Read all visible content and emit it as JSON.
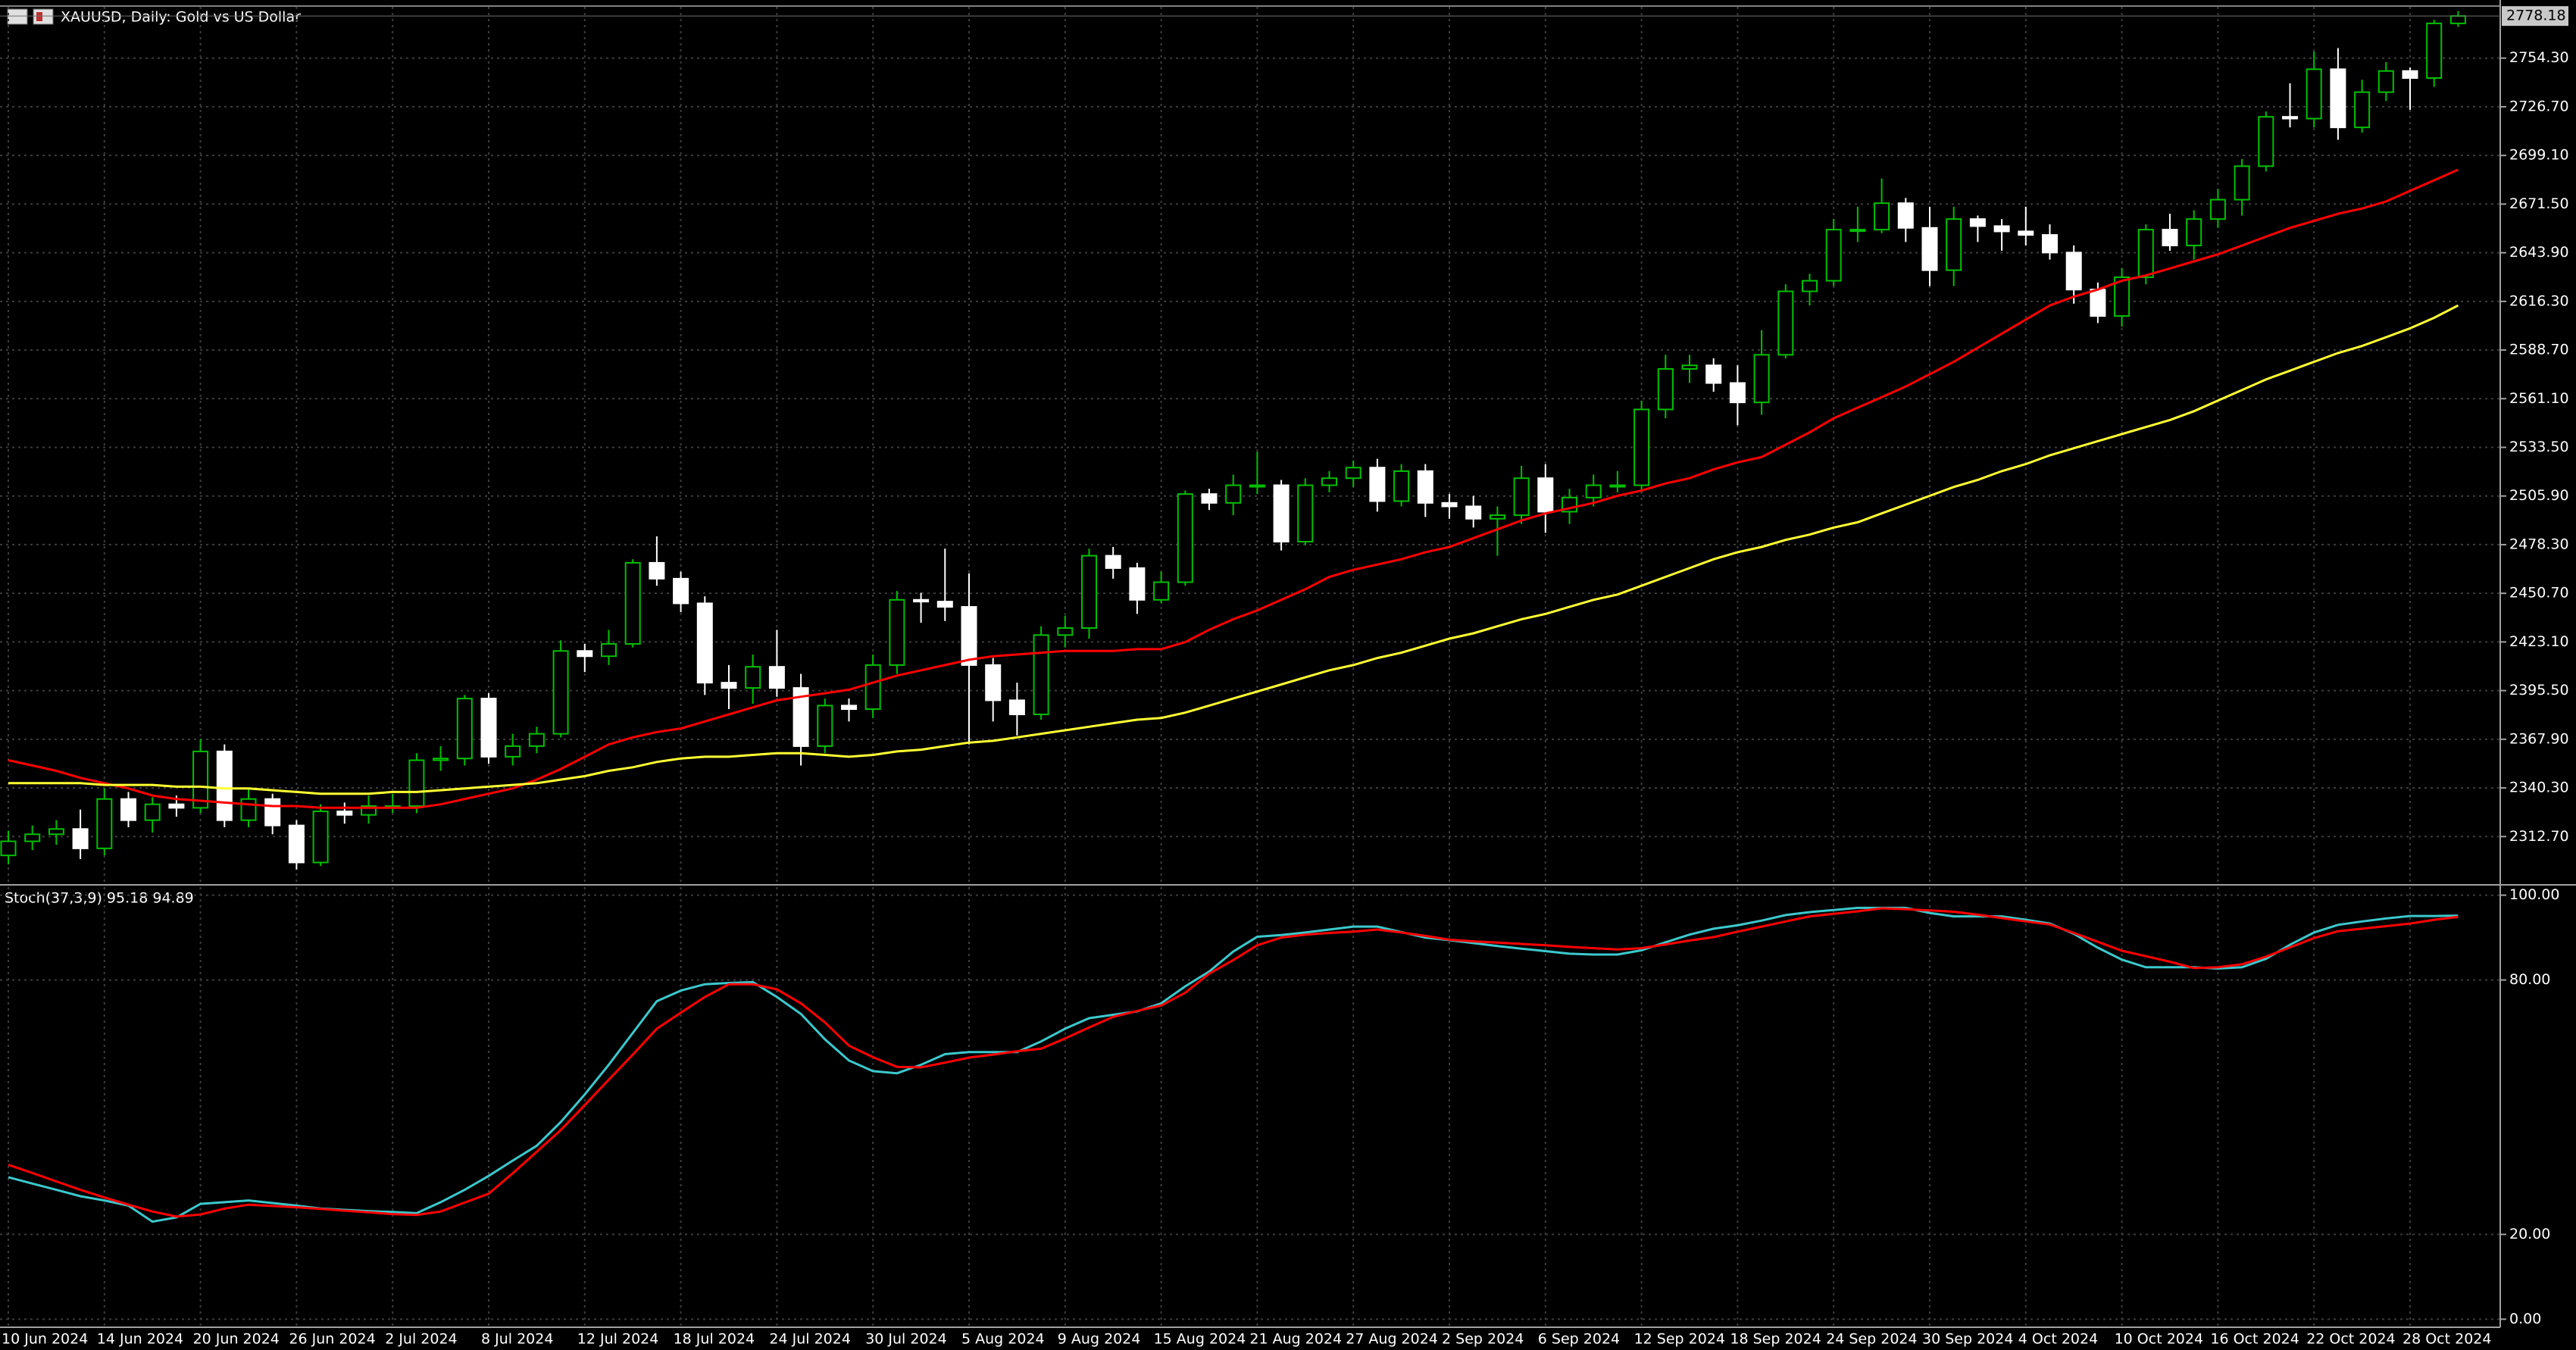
{
  "chart_data": [
    {
      "type": "candlestick",
      "title": "XAUUSD, Daily:  Gold vs US Dollar",
      "categories": [
        "10 Jun 2024",
        null,
        null,
        null,
        "14 Jun 2024",
        null,
        null,
        null,
        "20 Jun 2024",
        null,
        null,
        null,
        "26 Jun 2024",
        null,
        null,
        null,
        "2 Jul 2024",
        null,
        null,
        null,
        "8 Jul 2024",
        null,
        null,
        null,
        "12 Jul 2024",
        null,
        null,
        null,
        "18 Jul 2024",
        null,
        null,
        null,
        "24 Jul 2024",
        null,
        null,
        null,
        "30 Jul 2024",
        null,
        null,
        null,
        "5 Aug 2024",
        null,
        null,
        null,
        "9 Aug 2024",
        null,
        null,
        null,
        "15 Aug 2024",
        null,
        null,
        null,
        "21 Aug 2024",
        null,
        null,
        null,
        "27 Aug 2024",
        null,
        null,
        null,
        "2 Sep 2024",
        null,
        null,
        null,
        "6 Sep 2024",
        null,
        null,
        null,
        "12 Sep 2024",
        null,
        null,
        null,
        "18 Sep 2024",
        null,
        null,
        null,
        "24 Sep 2024",
        null,
        null,
        null,
        "30 Sep 2024",
        null,
        null,
        null,
        "4 Oct 2024",
        null,
        null,
        null,
        "10 Oct 2024",
        null,
        null,
        null,
        "16 Oct 2024",
        null,
        null,
        null,
        "22 Oct 2024",
        null,
        null,
        null,
        "28 Oct 2024",
        null,
        null
      ],
      "open": [
        2302,
        2310,
        2314,
        2317,
        2306,
        2334,
        2322,
        2331,
        2329,
        2361,
        2322,
        2334,
        2319,
        2298,
        2327,
        2325,
        2330,
        2330,
        2356,
        2357,
        2391,
        2358,
        2364,
        2371,
        2418,
        2415,
        2422,
        2468,
        2459,
        2445,
        2400,
        2397,
        2409,
        2397,
        2364,
        2387,
        2385,
        2410,
        2447,
        2446,
        2443,
        2410,
        2390,
        2382,
        2427,
        2431,
        2472,
        2465,
        2447,
        2457,
        2507,
        2502,
        2512,
        2512,
        2480,
        2512,
        2516,
        2522,
        2503,
        2520,
        2502,
        2500,
        2493,
        2495,
        2516,
        2497,
        2505,
        2512,
        2512,
        2555,
        2578,
        2580,
        2570,
        2559,
        2586,
        2622,
        2628,
        2657,
        2657,
        2672,
        2658,
        2634,
        2663,
        2659,
        2656,
        2654,
        2644,
        2623,
        2608,
        2630,
        2657,
        2648,
        2663,
        2674,
        2693,
        2721,
        2720,
        2748,
        2715,
        2735,
        2747,
        2743,
        2774
      ],
      "high": [
        2316,
        2319,
        2322,
        2328,
        2340,
        2338,
        2335,
        2336,
        2368,
        2365,
        2340,
        2337,
        2322,
        2331,
        2332,
        2336,
        2337,
        2360,
        2364,
        2393,
        2394,
        2371,
        2375,
        2424,
        2422,
        2430,
        2470,
        2483,
        2463,
        2449,
        2410,
        2416,
        2430,
        2405,
        2391,
        2391,
        2416,
        2452,
        2451,
        2476,
        2462,
        2414,
        2400,
        2432,
        2438,
        2476,
        2477,
        2468,
        2463,
        2509,
        2510,
        2518,
        2531,
        2515,
        2516,
        2520,
        2526,
        2527,
        2524,
        2524,
        2507,
        2506,
        2500,
        2523,
        2524,
        2510,
        2518,
        2520,
        2560,
        2586,
        2586,
        2584,
        2580,
        2600,
        2626,
        2632,
        2663,
        2670,
        2686,
        2675,
        2670,
        2670,
        2665,
        2663,
        2670,
        2660,
        2648,
        2627,
        2635,
        2660,
        2666,
        2668,
        2680,
        2697,
        2724,
        2740,
        2758,
        2760,
        2742,
        2752,
        2749,
        2776,
        2781
      ],
      "low": [
        2297,
        2305,
        2308,
        2300,
        2302,
        2318,
        2315,
        2324,
        2326,
        2318,
        2318,
        2314,
        2294,
        2296,
        2320,
        2320,
        2326,
        2326,
        2350,
        2353,
        2354,
        2353,
        2360,
        2369,
        2406,
        2410,
        2420,
        2455,
        2440,
        2393,
        2385,
        2388,
        2392,
        2353,
        2360,
        2378,
        2380,
        2405,
        2434,
        2435,
        2365,
        2378,
        2370,
        2379,
        2420,
        2425,
        2459,
        2439,
        2445,
        2455,
        2498,
        2495,
        2507,
        2475,
        2478,
        2508,
        2511,
        2497,
        2500,
        2494,
        2493,
        2488,
        2472,
        2490,
        2485,
        2490,
        2500,
        2508,
        2508,
        2550,
        2570,
        2565,
        2546,
        2552,
        2584,
        2614,
        2625,
        2650,
        2655,
        2650,
        2625,
        2625,
        2650,
        2645,
        2648,
        2640,
        2615,
        2604,
        2602,
        2626,
        2645,
        2640,
        2658,
        2665,
        2690,
        2715,
        2715,
        2708,
        2712,
        2730,
        2725,
        2738,
        2772
      ],
      "close": [
        2310,
        2314,
        2317,
        2306,
        2334,
        2322,
        2331,
        2329,
        2361,
        2322,
        2334,
        2319,
        2298,
        2327,
        2325,
        2330,
        2330,
        2356,
        2357,
        2391,
        2358,
        2364,
        2371,
        2418,
        2415,
        2422,
        2468,
        2459,
        2445,
        2400,
        2397,
        2409,
        2397,
        2364,
        2387,
        2385,
        2410,
        2447,
        2446,
        2443,
        2410,
        2390,
        2382,
        2427,
        2431,
        2472,
        2465,
        2447,
        2457,
        2507,
        2502,
        2512,
        2512,
        2480,
        2512,
        2516,
        2522,
        2503,
        2520,
        2502,
        2500,
        2493,
        2495,
        2516,
        2497,
        2505,
        2512,
        2512,
        2555,
        2578,
        2580,
        2570,
        2559,
        2586,
        2622,
        2628,
        2657,
        2657,
        2672,
        2658,
        2634,
        2663,
        2659,
        2656,
        2654,
        2644,
        2623,
        2608,
        2630,
        2657,
        2648,
        2663,
        2674,
        2693,
        2721,
        2720,
        2748,
        2715,
        2735,
        2747,
        2743,
        2774,
        2778.18
      ],
      "up_color": "#00c000",
      "down_color": "#ffffff",
      "series": [
        {
          "color": "#ff0000",
          "values": [
            2356,
            2353,
            2350,
            2346,
            2343,
            2340,
            2336,
            2334,
            2333,
            2332,
            2331,
            2330,
            2330,
            2329,
            2329,
            2329,
            2329,
            2329,
            2331,
            2334,
            2337,
            2340,
            2345,
            2351,
            2358,
            2365,
            2369,
            2372,
            2374,
            2378,
            2382,
            2386,
            2390,
            2392,
            2394,
            2396,
            2400,
            2404,
            2407,
            2410,
            2413,
            2415,
            2416,
            2417,
            2418,
            2418,
            2418,
            2419,
            2419,
            2423,
            2430,
            2436,
            2441,
            2447,
            2453,
            2460,
            2464,
            2467,
            2470,
            2474,
            2477,
            2482,
            2487,
            2492,
            2496,
            2499,
            2502,
            2506,
            2509,
            2513,
            2516,
            2521,
            2525,
            2528,
            2535,
            2542,
            2550,
            2556,
            2562,
            2568,
            2575,
            2582,
            2590,
            2598,
            2606,
            2614,
            2619,
            2623,
            2628,
            2631,
            2635,
            2639,
            2643,
            2648,
            2653,
            2658,
            2662,
            2666,
            2669,
            2673,
            2679,
            2685,
            2691
          ]
        },
        {
          "color": "#ffff33",
          "values": [
            2343,
            2343,
            2343,
            2343,
            2342,
            2342,
            2342,
            2341,
            2341,
            2340,
            2340,
            2339,
            2338,
            2337,
            2337,
            2337,
            2338,
            2338,
            2339,
            2340,
            2341,
            2342,
            2343,
            2345,
            2347,
            2350,
            2352,
            2355,
            2357,
            2358,
            2358,
            2359,
            2360,
            2360,
            2359,
            2358,
            2359,
            2361,
            2362,
            2364,
            2366,
            2367,
            2369,
            2371,
            2373,
            2375,
            2377,
            2379,
            2380,
            2383,
            2387,
            2391,
            2395,
            2399,
            2403,
            2407,
            2410,
            2414,
            2417,
            2421,
            2425,
            2428,
            2432,
            2436,
            2439,
            2443,
            2447,
            2450,
            2455,
            2460,
            2465,
            2470,
            2474,
            2477,
            2481,
            2484,
            2488,
            2491,
            2496,
            2501,
            2506,
            2511,
            2515,
            2520,
            2524,
            2529,
            2533,
            2537,
            2541,
            2545,
            2549,
            2554,
            2560,
            2566,
            2572,
            2577,
            2582,
            2587,
            2591,
            2596,
            2601,
            2607,
            2614
          ]
        }
      ],
      "last_price": 2778.18,
      "ylim": [
        2286.6,
        2783.4
      ],
      "yticks": [
        {
          "value": 2312.7,
          "label": "2312.70"
        },
        {
          "value": 2340.3,
          "label": "2340.30"
        },
        {
          "value": 2367.9,
          "label": "2367.90"
        },
        {
          "value": 2395.5,
          "label": "2395.50"
        },
        {
          "value": 2423.1,
          "label": "2423.10"
        },
        {
          "value": 2450.7,
          "label": "2450.70"
        },
        {
          "value": 2478.3,
          "label": "2478.30"
        },
        {
          "value": 2505.9,
          "label": "2505.90"
        },
        {
          "value": 2533.5,
          "label": "2533.50"
        },
        {
          "value": 2561.1,
          "label": "2561.10"
        },
        {
          "value": 2588.7,
          "label": "2588.70"
        },
        {
          "value": 2616.3,
          "label": "2616.30"
        },
        {
          "value": 2643.9,
          "label": "2643.90"
        },
        {
          "value": 2671.5,
          "label": "2671.50"
        },
        {
          "value": 2699.1,
          "label": "2699.10"
        },
        {
          "value": 2726.7,
          "label": "2726.70"
        },
        {
          "value": 2754.3,
          "label": "2754.30"
        }
      ],
      "grid": true
    },
    {
      "type": "line",
      "title": "Stoch(37,3,9) 95.18 94.89",
      "series": [
        {
          "color": "#3cc8cc",
          "values": [
            33.5,
            32,
            30.5,
            29,
            28,
            26.8,
            23,
            24,
            27.2,
            27.6,
            28,
            27.4,
            26.8,
            26.1,
            25.8,
            25.5,
            25.3,
            25,
            27.6,
            30.5,
            33.8,
            37.4,
            40.9,
            46.5,
            53,
            60,
            67.5,
            75,
            77.5,
            79,
            79.3,
            79.5,
            76,
            72,
            66,
            61,
            58.5,
            58,
            60,
            62.5,
            63,
            63,
            63,
            65.5,
            68.5,
            71,
            71.8,
            72.6,
            74.5,
            78.5,
            82,
            86.7,
            90.2,
            90.6,
            91.2,
            91.9,
            92.6,
            92.6,
            91.3,
            90,
            89.4,
            88.7,
            88,
            87.4,
            86.8,
            86.2,
            86,
            86,
            87,
            88.9,
            90.7,
            92.1,
            92.9,
            94,
            95.3,
            96,
            96.5,
            97,
            97,
            97,
            95.8,
            95,
            95,
            95,
            94.2,
            93.3,
            90.9,
            87.6,
            84.8,
            83,
            83,
            83,
            82.7,
            83,
            85,
            88.3,
            91.2,
            93,
            93.8,
            94.5,
            95.1,
            95.1,
            95.18
          ]
        },
        {
          "color": "#ff0000",
          "values": [
            36.4,
            34.5,
            32.5,
            30.5,
            28.7,
            27,
            25.4,
            24.2,
            24.7,
            26.1,
            27,
            26.7,
            26.4,
            26,
            25.6,
            25.2,
            24.8,
            24.6,
            25.4,
            27.5,
            29.6,
            34.4,
            39.5,
            44.6,
            50.5,
            56.5,
            62.4,
            68.5,
            72.3,
            76,
            79,
            79,
            77.8,
            74.5,
            70,
            64.5,
            61.8,
            59.5,
            59.4,
            60.5,
            61.7,
            62.4,
            63.2,
            63.8,
            66.2,
            68.8,
            71.3,
            72.7,
            74,
            77,
            81.5,
            84.7,
            88.2,
            90,
            90.7,
            91.1,
            91.4,
            91.9,
            91.2,
            90.4,
            89.5,
            89.1,
            88.8,
            88.5,
            88.2,
            87.8,
            87.5,
            87.2,
            87.5,
            88.4,
            89.3,
            90.1,
            91.4,
            92.6,
            93.8,
            95,
            95.6,
            96.2,
            96.9,
            96.7,
            96.4,
            96.1,
            95.4,
            94.6,
            93.8,
            93.1,
            91.1,
            89,
            86.9,
            85.6,
            84.3,
            82.8,
            83,
            83.7,
            85.5,
            87.7,
            89.9,
            91.5,
            92.1,
            92.7,
            93.3,
            94.2,
            94.89
          ]
        }
      ],
      "ylim": [
        -1.9,
        101.9
      ],
      "yticks": [
        {
          "value": 100,
          "label": "100.00"
        },
        {
          "value": 80,
          "label": "80.00"
        },
        {
          "value": 20,
          "label": "20.00"
        },
        {
          "value": 0,
          "label": "0.00"
        }
      ],
      "grid": true
    }
  ]
}
